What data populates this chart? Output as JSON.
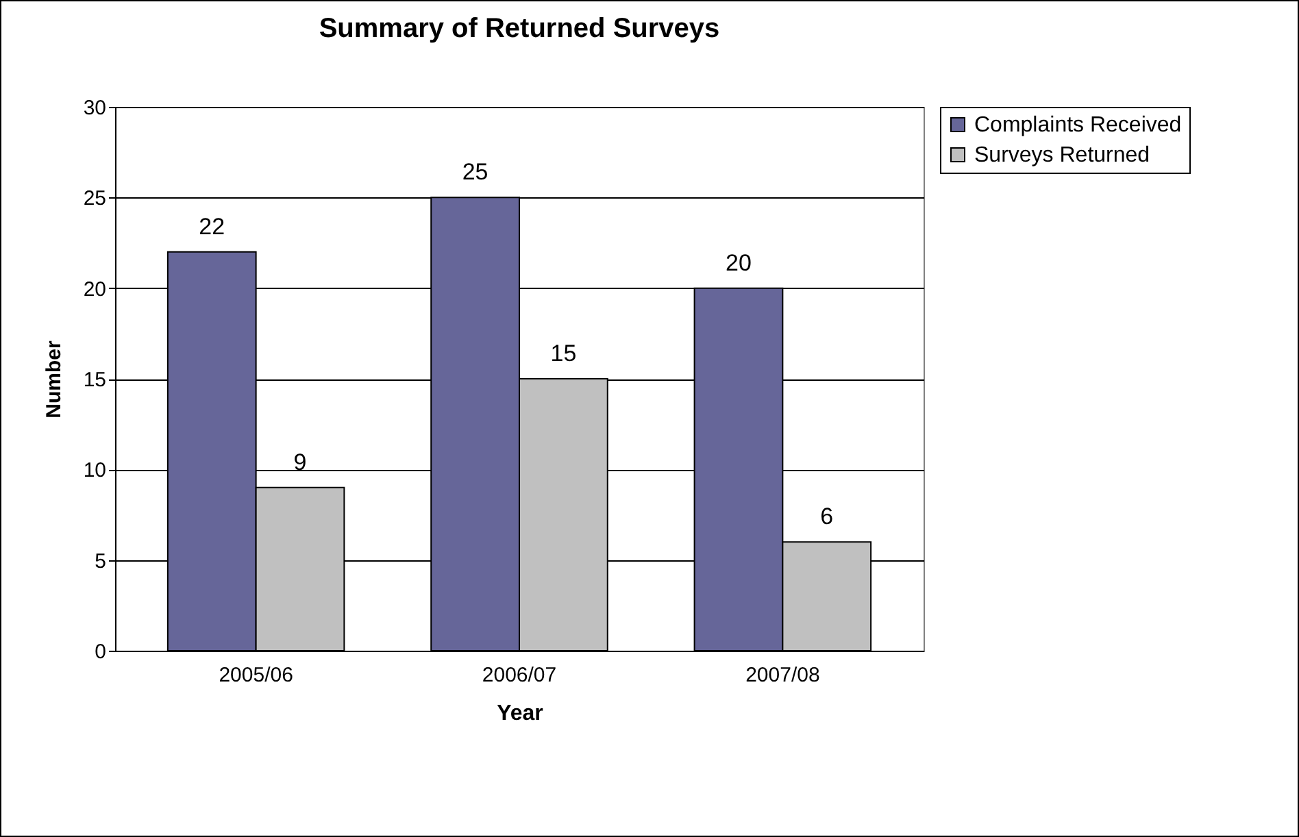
{
  "chart_data": {
    "type": "bar",
    "title": "Summary of Returned Surveys",
    "xlabel": "Year",
    "ylabel": "Number",
    "categories": [
      "2005/06",
      "2006/07",
      "2007/08"
    ],
    "series": [
      {
        "name": "Complaints Received",
        "color": "#666699",
        "values": [
          22,
          25,
          20
        ]
      },
      {
        "name": "Surveys Returned",
        "color": "#c0c0c0",
        "values": [
          9,
          15,
          6
        ]
      }
    ],
    "ylim": [
      0,
      30
    ],
    "yticks": [
      0,
      5,
      10,
      15,
      20,
      25,
      30
    ],
    "grid": "y",
    "legend": "right",
    "data_labels": true
  }
}
